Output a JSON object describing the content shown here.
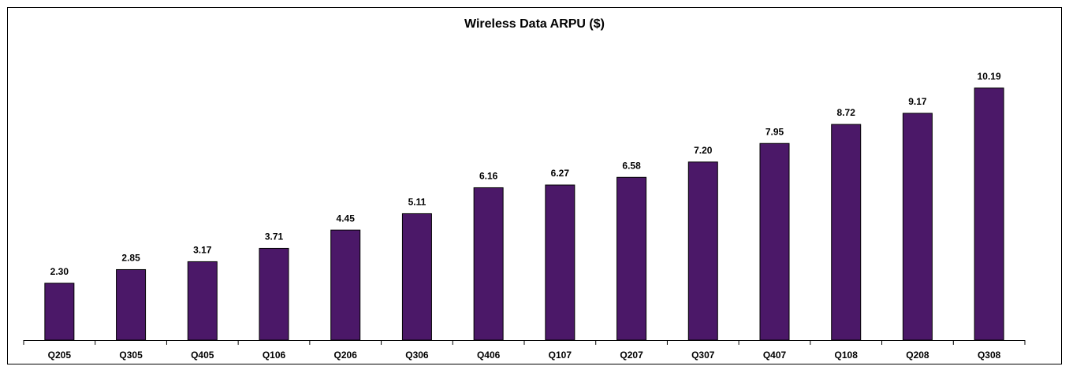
{
  "chart_data": {
    "type": "bar",
    "title": "Wireless Data ARPU ($)",
    "categories": [
      "Q205",
      "Q305",
      "Q405",
      "Q106",
      "Q206",
      "Q306",
      "Q406",
      "Q107",
      "Q207",
      "Q307",
      "Q407",
      "Q108",
      "Q208",
      "Q308"
    ],
    "values": [
      2.3,
      2.85,
      3.17,
      3.71,
      4.45,
      5.11,
      6.16,
      6.27,
      6.58,
      7.2,
      7.95,
      8.72,
      9.17,
      10.19
    ],
    "value_labels": [
      "2.30",
      "2.85",
      "3.17",
      "3.71",
      "4.45",
      "5.11",
      "6.16",
      "6.27",
      "6.58",
      "7.20",
      "7.95",
      "8.72",
      "9.17",
      "10.19"
    ],
    "color": "#4b1868",
    "ylim": [
      0,
      12
    ]
  }
}
